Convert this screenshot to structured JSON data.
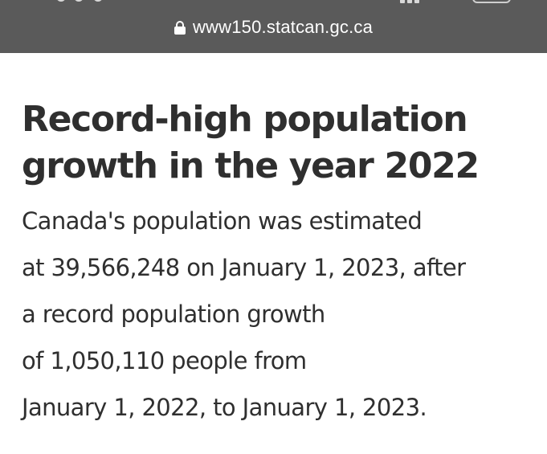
{
  "browser": {
    "url": "www150.statcan.gc.ca",
    "lock_icon": "lock-icon"
  },
  "article": {
    "headline_lines": [
      "Record-high population",
      "growth in the year 2022"
    ],
    "body_lines": [
      "Canada's population was estimated",
      "at 39,566,248 on January 1, 2023, after",
      "a record population growth",
      "of 1,050,110 people from",
      "January 1, 2022, to January 1, 2023."
    ]
  },
  "colors": {
    "address_bar_bg": "#5a5a5a",
    "text": "#2f2f2f",
    "page_bg": "#ffffff"
  }
}
